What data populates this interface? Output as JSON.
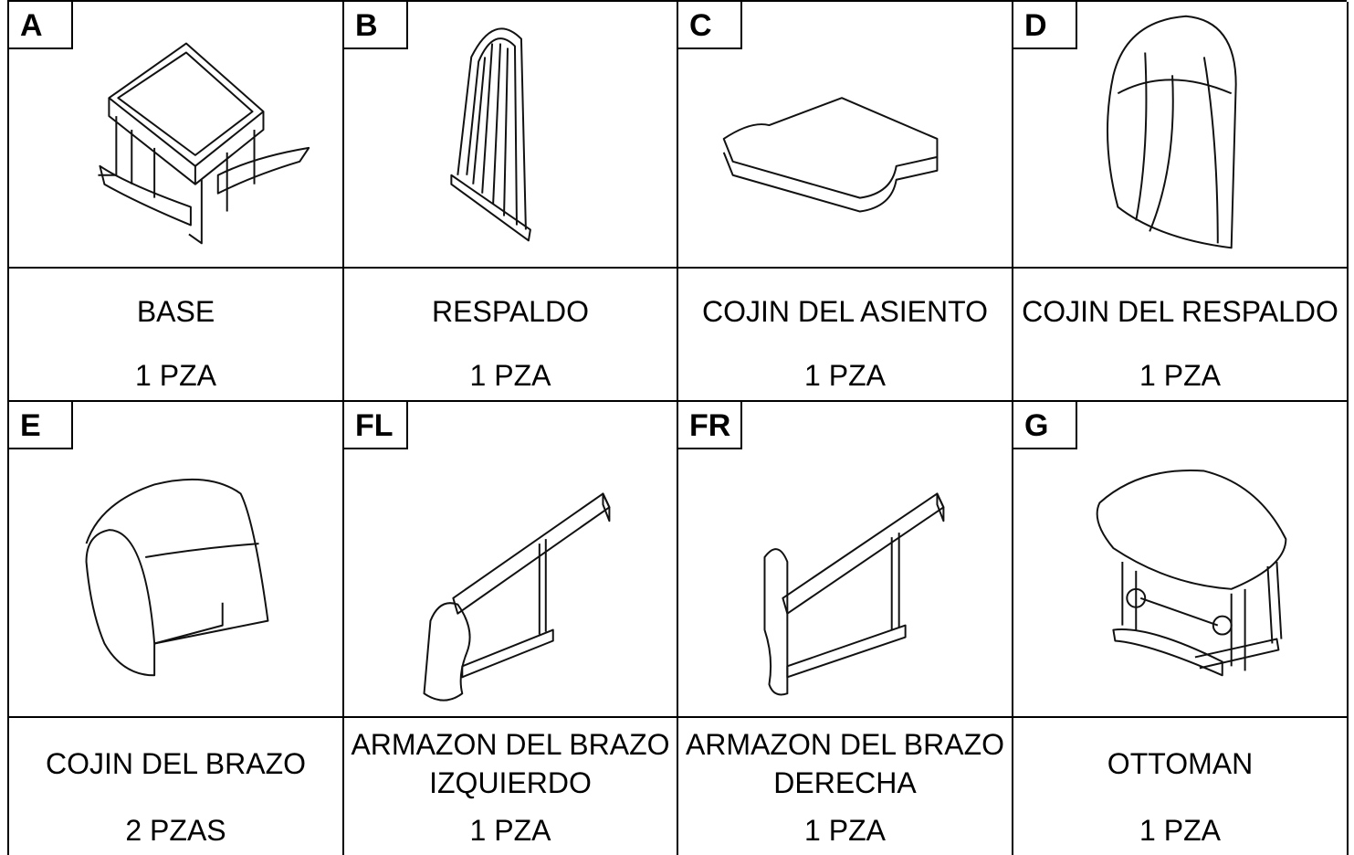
{
  "parts": [
    {
      "letter": "A",
      "name": "BASE",
      "qty": "1 PZA"
    },
    {
      "letter": "B",
      "name": "RESPALDO",
      "qty": "1 PZA"
    },
    {
      "letter": "C",
      "name": "COJIN DEL ASIENTO",
      "qty": "1 PZA"
    },
    {
      "letter": "D",
      "name": "COJIN DEL RESPALDO",
      "qty": "1 PZA"
    },
    {
      "letter": "E",
      "name": "COJIN DEL BRAZO",
      "qty": "2 PZAS"
    },
    {
      "letter": "FL",
      "name": "ARMAZON DEL BRAZO IZQUIERDO",
      "qty": "1 PZA"
    },
    {
      "letter": "FR",
      "name": "ARMAZON DEL BRAZO DERECHA",
      "qty": "1 PZA"
    },
    {
      "letter": "G",
      "name": "OTTOMAN",
      "qty": "1 PZA"
    }
  ]
}
